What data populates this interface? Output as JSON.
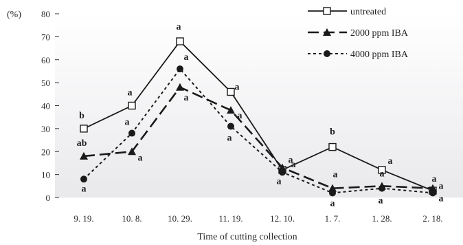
{
  "chart_data": {
    "type": "line",
    "ylabel": "(%)",
    "xlabel": "Time of cutting collection",
    "ylim": [
      0,
      80
    ],
    "yticks": [
      0,
      10,
      20,
      30,
      40,
      50,
      60,
      70,
      80
    ],
    "grid": false,
    "legend_position": "top-right",
    "categories": [
      "9. 19.",
      "10. 8.",
      "10. 29.",
      "11. 19.",
      "12. 10.",
      "1. 7.",
      "1. 28.",
      "2. 18."
    ],
    "series": [
      {
        "name": "untreated",
        "values": [
          30,
          40,
          68,
          46,
          12,
          22,
          12,
          3
        ],
        "significance": [
          "b",
          "a",
          "a",
          "a",
          "a",
          "b",
          "a",
          "a"
        ],
        "line": "solid",
        "marker": "open-square",
        "color": "#1a1a1a"
      },
      {
        "name": "2000 ppm IBA",
        "values": [
          18,
          20,
          48,
          38,
          13,
          4,
          5,
          4
        ],
        "significance": [
          "ab",
          "a",
          "a",
          "a",
          "a",
          "a",
          "a",
          "a"
        ],
        "line": "dashed",
        "marker": "filled-triangle",
        "color": "#1a1a1a"
      },
      {
        "name": "4000 ppm IBA",
        "values": [
          8,
          28,
          56,
          31,
          11,
          2,
          4,
          2
        ],
        "significance": [
          "a",
          "a",
          "a",
          "a",
          "a",
          "a",
          "a",
          "a"
        ],
        "line": "dotted",
        "marker": "filled-circle",
        "color": "#1a1a1a"
      }
    ]
  }
}
